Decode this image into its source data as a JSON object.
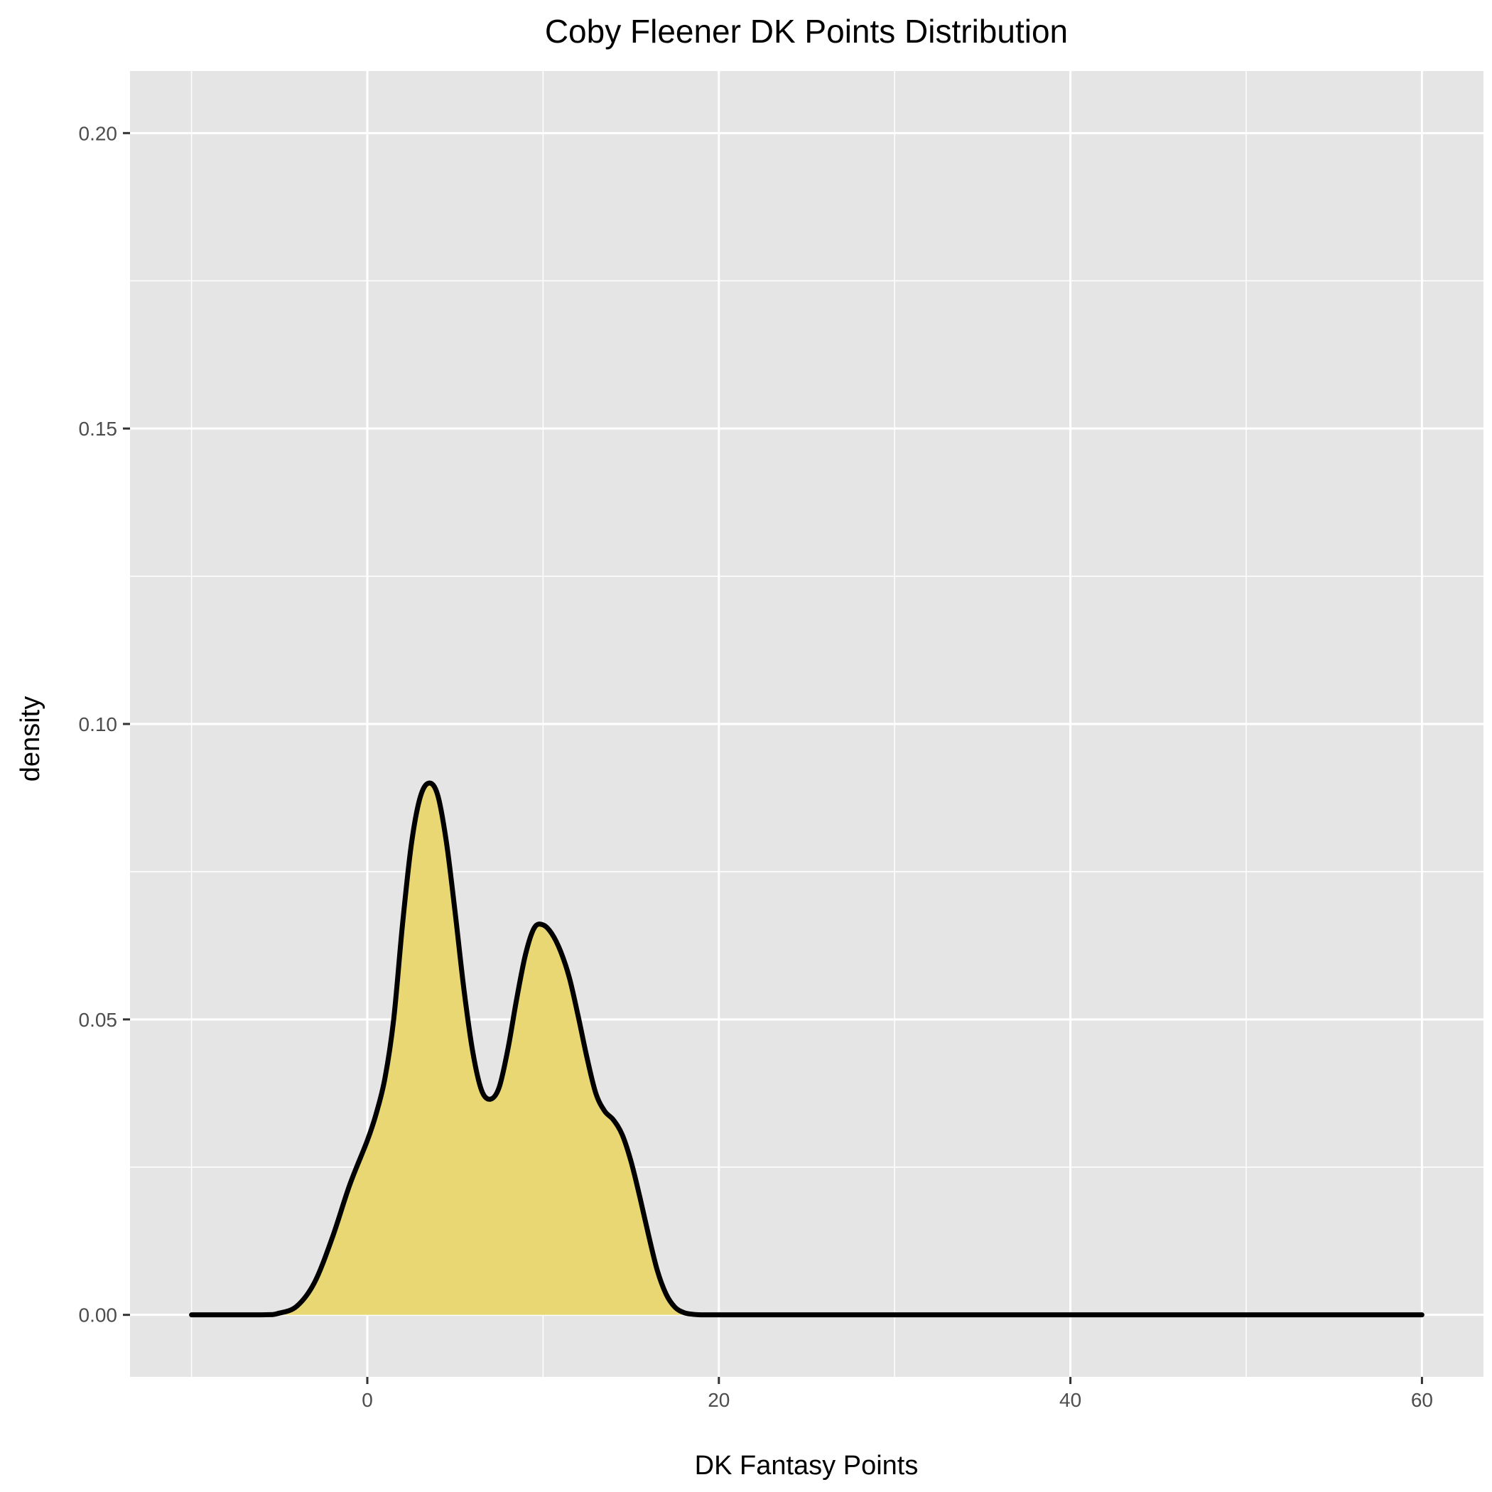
{
  "chart_data": {
    "type": "area",
    "title": "Coby Fleener DK Points Distribution",
    "xlabel": "DK Fantasy Points",
    "ylabel": "density",
    "xlim": [
      -13.5,
      63.5
    ],
    "ylim": [
      -0.0105,
      0.2105
    ],
    "x_ticks": [
      0,
      20,
      40,
      60
    ],
    "x_tick_labels": [
      "0",
      "20",
      "40",
      "60"
    ],
    "x_minor_ticks": [
      -10,
      10,
      30,
      50
    ],
    "y_ticks": [
      0,
      0.05,
      0.1,
      0.15,
      0.2
    ],
    "y_tick_labels": [
      "0.00",
      "0.05",
      "0.10",
      "0.15",
      "0.20"
    ],
    "y_minor_ticks": [
      0.025,
      0.075,
      0.125,
      0.175
    ],
    "grid": true,
    "colors": {
      "panel": "#e5e5e5",
      "grid": "#ffffff",
      "fill": "#e8d772",
      "line": "#000000"
    },
    "series": [
      {
        "x": [
          -10,
          -6,
          -5,
          -4,
          -3,
          -2,
          -1,
          0,
          0.5,
          1,
          1.5,
          2,
          2.5,
          3,
          3.5,
          4,
          4.5,
          5,
          5.5,
          6,
          6.5,
          7,
          7.5,
          8,
          8.5,
          9,
          9.5,
          10,
          10.5,
          11,
          11.5,
          12,
          12.5,
          13,
          13.5,
          14,
          14.5,
          15,
          15.5,
          16,
          16.5,
          17,
          17.5,
          18,
          18.5,
          19,
          19.5,
          20,
          21,
          22,
          60
        ],
        "y": [
          0,
          0,
          0.0003,
          0.0015,
          0.0055,
          0.013,
          0.022,
          0.0295,
          0.034,
          0.04,
          0.05,
          0.066,
          0.0795,
          0.0875,
          0.09,
          0.088,
          0.08,
          0.068,
          0.055,
          0.0445,
          0.038,
          0.0365,
          0.0385,
          0.045,
          0.0535,
          0.061,
          0.0655,
          0.066,
          0.0645,
          0.0615,
          0.057,
          0.0505,
          0.0435,
          0.0375,
          0.0345,
          0.033,
          0.0305,
          0.026,
          0.02,
          0.0135,
          0.0075,
          0.0035,
          0.0013,
          0.0004,
          0.0001,
          0,
          0,
          0,
          0,
          0,
          0
        ]
      }
    ]
  }
}
